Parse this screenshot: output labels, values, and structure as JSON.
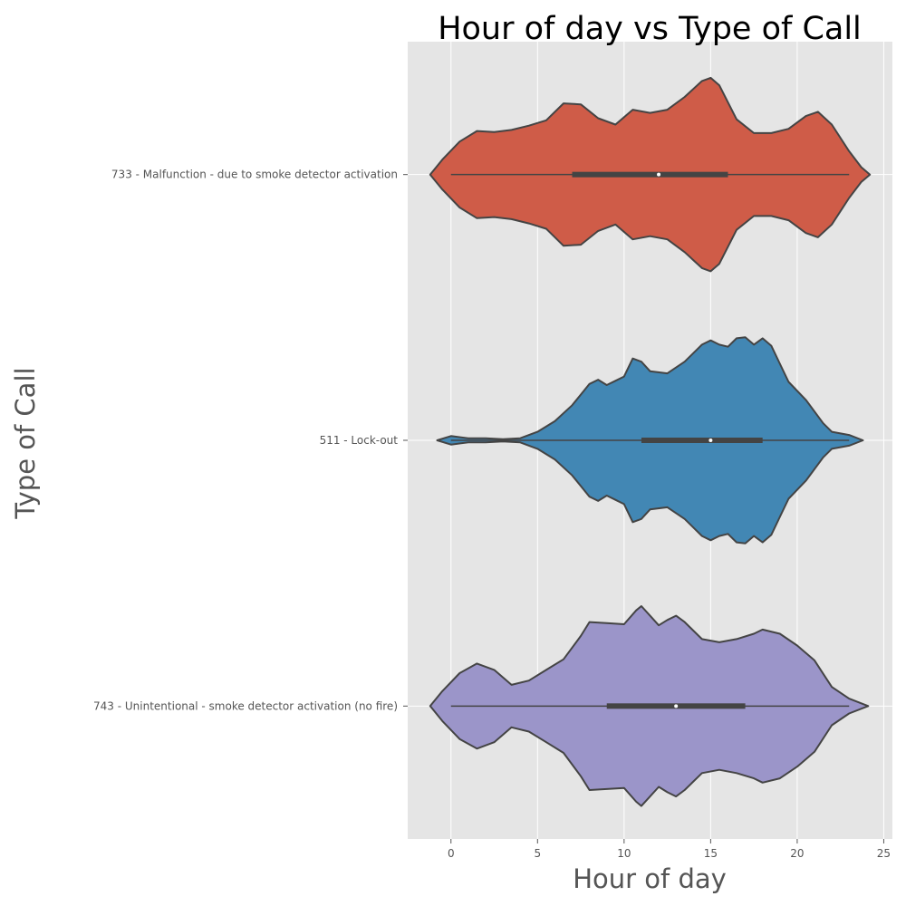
{
  "chart_data": {
    "type": "violin",
    "orientation": "horizontal",
    "title": "Hour of day vs Type of Call",
    "xlabel": "Hour of day",
    "ylabel": "Type of Call",
    "xlim": [
      -2.5,
      25.5
    ],
    "xticks": [
      0,
      5,
      10,
      15,
      20,
      25
    ],
    "xtick_labels": [
      "0",
      "5",
      "10",
      "15",
      "20",
      "25"
    ],
    "grid": true,
    "legend": "none",
    "colors": {
      "background": "#e5e5e5",
      "grid": "#ffffff",
      "outline": "#444444"
    },
    "categories": [
      "733 - Malfunction - due to smoke detector activation",
      "511 - Lock-out",
      "743 - Unintentional - smoke detector activation (no fire)"
    ],
    "series": [
      {
        "category": "733 - Malfunction - due to smoke detector activation",
        "color": "#cf5c48",
        "min": 0,
        "q1": 7,
        "median": 12,
        "q3": 16,
        "max": 23,
        "density": [
          [
            -1.2,
            0.0
          ],
          [
            -0.5,
            0.14
          ],
          [
            0.5,
            0.31
          ],
          [
            1.5,
            0.41
          ],
          [
            2.5,
            0.4
          ],
          [
            3.5,
            0.42
          ],
          [
            4.5,
            0.46
          ],
          [
            5.5,
            0.51
          ],
          [
            6.5,
            0.67
          ],
          [
            7.5,
            0.66
          ],
          [
            8.5,
            0.53
          ],
          [
            9.5,
            0.47
          ],
          [
            10.5,
            0.61
          ],
          [
            11.5,
            0.58
          ],
          [
            12.5,
            0.61
          ],
          [
            13.5,
            0.73
          ],
          [
            14.5,
            0.88
          ],
          [
            15,
            0.91
          ],
          [
            15.5,
            0.84
          ],
          [
            16.5,
            0.52
          ],
          [
            17.5,
            0.39
          ],
          [
            18.5,
            0.39
          ],
          [
            19.5,
            0.43
          ],
          [
            20.5,
            0.55
          ],
          [
            21.2,
            0.59
          ],
          [
            22,
            0.47
          ],
          [
            23,
            0.22
          ],
          [
            23.7,
            0.07
          ],
          [
            24.2,
            0.0
          ]
        ]
      },
      {
        "category": "511 - Lock-out",
        "color": "#4287b4",
        "min": 0,
        "q1": 11,
        "median": 15,
        "q3": 18,
        "max": 23,
        "density": [
          [
            -0.8,
            0.0
          ],
          [
            0,
            0.04
          ],
          [
            1,
            0.02
          ],
          [
            2,
            0.02
          ],
          [
            3,
            0.01
          ],
          [
            4,
            0.02
          ],
          [
            5,
            0.08
          ],
          [
            6,
            0.18
          ],
          [
            7,
            0.33
          ],
          [
            7.5,
            0.43
          ],
          [
            8,
            0.53
          ],
          [
            8.5,
            0.57
          ],
          [
            9,
            0.52
          ],
          [
            9.5,
            0.56
          ],
          [
            10,
            0.6
          ],
          [
            10.5,
            0.77
          ],
          [
            11,
            0.74
          ],
          [
            11.5,
            0.65
          ],
          [
            12.5,
            0.63
          ],
          [
            13.5,
            0.74
          ],
          [
            14.5,
            0.9
          ],
          [
            15,
            0.94
          ],
          [
            15.5,
            0.9
          ],
          [
            16,
            0.88
          ],
          [
            16.5,
            0.96
          ],
          [
            17,
            0.97
          ],
          [
            17.5,
            0.9
          ],
          [
            18,
            0.96
          ],
          [
            18.5,
            0.89
          ],
          [
            19,
            0.72
          ],
          [
            19.5,
            0.55
          ],
          [
            20.5,
            0.38
          ],
          [
            21.5,
            0.16
          ],
          [
            22,
            0.08
          ],
          [
            23,
            0.05
          ],
          [
            23.8,
            0.0
          ]
        ]
      },
      {
        "category": "743 - Unintentional - smoke detector activation (no fire)",
        "color": "#9b95c9",
        "min": 0,
        "q1": 9,
        "median": 13,
        "q3": 17,
        "max": 23,
        "density": [
          [
            -1.2,
            0.0
          ],
          [
            -0.5,
            0.14
          ],
          [
            0.5,
            0.31
          ],
          [
            1.5,
            0.4
          ],
          [
            2.5,
            0.34
          ],
          [
            3.5,
            0.2
          ],
          [
            4.5,
            0.24
          ],
          [
            5.5,
            0.34
          ],
          [
            6.5,
            0.44
          ],
          [
            7.5,
            0.66
          ],
          [
            8,
            0.79
          ],
          [
            9,
            0.78
          ],
          [
            10,
            0.77
          ],
          [
            10.7,
            0.9
          ],
          [
            11,
            0.94
          ],
          [
            11.5,
            0.85
          ],
          [
            12,
            0.76
          ],
          [
            12.5,
            0.81
          ],
          [
            13,
            0.85
          ],
          [
            13.5,
            0.79
          ],
          [
            14.5,
            0.63
          ],
          [
            15.5,
            0.6
          ],
          [
            16.5,
            0.63
          ],
          [
            17.5,
            0.68
          ],
          [
            18,
            0.72
          ],
          [
            19,
            0.68
          ],
          [
            20,
            0.57
          ],
          [
            21,
            0.43
          ],
          [
            22,
            0.18
          ],
          [
            23,
            0.07
          ],
          [
            24.1,
            0.0
          ]
        ]
      }
    ]
  }
}
